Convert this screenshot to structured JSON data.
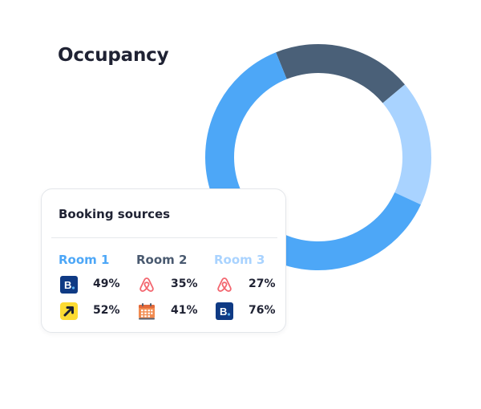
{
  "widget": {
    "title": "Occupancy"
  },
  "occupancy_ring": {
    "segments": [
      {
        "share": 0.2,
        "color": "#4a6078"
      },
      {
        "share": 0.18,
        "color": "#a9d3ff"
      },
      {
        "share": 0.37,
        "color": "#4da7f7"
      },
      {
        "share": 0.25,
        "color": "#4da7f7"
      }
    ]
  },
  "booking": {
    "title": "Booking sources",
    "rooms": [
      {
        "name": "Room 1",
        "color": "#4da7f7",
        "sources": [
          {
            "icon": "booking-com-icon",
            "pct": "49%"
          },
          {
            "icon": "expedia-icon",
            "pct": "52%"
          }
        ]
      },
      {
        "name": "Room 2",
        "color": "#4a5a70",
        "sources": [
          {
            "icon": "airbnb-icon",
            "pct": "35%"
          },
          {
            "icon": "calendar-icon",
            "pct": "41%"
          }
        ]
      },
      {
        "name": "Room 3",
        "color": "#a9d3ff",
        "sources": [
          {
            "icon": "airbnb-icon",
            "pct": "27%"
          },
          {
            "icon": "booking-com-icon",
            "pct": "76%"
          }
        ]
      }
    ]
  }
}
